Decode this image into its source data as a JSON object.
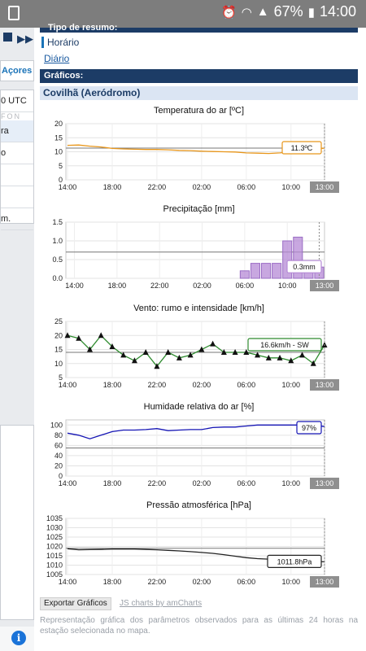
{
  "status_bar": {
    "battery": "67%",
    "time": "14:00"
  },
  "sidebar": {
    "acores_label": "Açores",
    "utc_label": "0 UTC",
    "faint_text": "FON",
    "rows": [
      "ra",
      "o",
      "",
      "",
      "m."
    ]
  },
  "main": {
    "resumo_title": "Tipo de resumo:",
    "link_horario": "Horário",
    "link_diario": "Diário",
    "graficos_header": "Gráficos:",
    "station": "Covilhã (Aeródromo)",
    "export_label": "Exportar Gráficos",
    "jscharts_label": "JS charts by amCharts",
    "footnote": "Representação gráfica dos parâmetros observados para as últimas 24 horas na estação selecionada no mapa."
  },
  "colors": {
    "navy": "#1c3c66",
    "temp": "#e8961a",
    "precip": "#b58ad6",
    "wind": "#2e8b2e",
    "humidity": "#1414b4",
    "pressure": "#222222"
  },
  "chart_data": [
    {
      "id": "temp",
      "type": "line",
      "title": "Temperatura do ar [ºC]",
      "x": [
        "14:00",
        "15:00",
        "16:00",
        "17:00",
        "18:00",
        "19:00",
        "20:00",
        "21:00",
        "22:00",
        "23:00",
        "00:00",
        "01:00",
        "02:00",
        "03:00",
        "04:00",
        "05:00",
        "06:00",
        "07:00",
        "08:00",
        "09:00",
        "10:00",
        "11:00",
        "12:00",
        "13:00"
      ],
      "values": [
        12.3,
        12.4,
        12.0,
        11.7,
        11.2,
        11.0,
        10.9,
        10.8,
        10.8,
        10.7,
        10.5,
        10.4,
        10.2,
        10.1,
        10.0,
        9.9,
        9.6,
        9.5,
        9.4,
        9.6,
        9.9,
        10.3,
        10.8,
        11.3
      ],
      "yticks": [
        0,
        5,
        10,
        15,
        20
      ],
      "ylim": [
        0,
        20
      ],
      "guide": 11.3,
      "balloon": "11.3ºC",
      "color": "#e8961a"
    },
    {
      "id": "precip",
      "type": "bar",
      "title": "Precipitação [mm]",
      "x": [
        "14:00",
        "15:00",
        "16:00",
        "17:00",
        "18:00",
        "19:00",
        "20:00",
        "21:00",
        "22:00",
        "23:00",
        "00:00",
        "01:00",
        "02:00",
        "03:00",
        "04:00",
        "05:00",
        "06:00",
        "07:00",
        "08:00",
        "09:00",
        "10:00",
        "11:00",
        "12:00",
        "13:00"
      ],
      "values": [
        0,
        0,
        0,
        0,
        0,
        0,
        0,
        0,
        0,
        0,
        0,
        0,
        0,
        0,
        0,
        0,
        0.2,
        0.4,
        0.4,
        0.4,
        1.0,
        1.1,
        0.4,
        0.3
      ],
      "yticks": [
        "0.0",
        "0.5",
        "1.0",
        "1.5"
      ],
      "ylim": [
        0,
        1.5
      ],
      "guide": 0.7,
      "balloon": "0.3mm",
      "color": "#b58ad6"
    },
    {
      "id": "wind",
      "type": "line",
      "title": "Vento: rumo e intensidade [km/h]",
      "x": [
        "14:00",
        "15:00",
        "16:00",
        "17:00",
        "18:00",
        "19:00",
        "20:00",
        "21:00",
        "22:00",
        "23:00",
        "00:00",
        "01:00",
        "02:00",
        "03:00",
        "04:00",
        "05:00",
        "06:00",
        "07:00",
        "08:00",
        "09:00",
        "10:00",
        "11:00",
        "12:00",
        "13:00"
      ],
      "values": [
        20,
        19,
        15,
        20,
        16,
        13,
        11,
        14,
        9,
        14,
        12,
        13,
        15,
        17,
        14,
        14,
        14,
        13,
        12,
        12,
        11,
        13,
        10,
        16.6
      ],
      "yticks": [
        5,
        10,
        15,
        20,
        25
      ],
      "ylim": [
        5,
        25
      ],
      "guide": 14,
      "balloon": "16.6km/h - SW",
      "color": "#2e8b2e"
    },
    {
      "id": "humidity",
      "type": "line",
      "title": "Humidade relativa do ar [%]",
      "x": [
        "14:00",
        "15:00",
        "16:00",
        "17:00",
        "18:00",
        "19:00",
        "20:00",
        "21:00",
        "22:00",
        "23:00",
        "00:00",
        "01:00",
        "02:00",
        "03:00",
        "04:00",
        "05:00",
        "06:00",
        "07:00",
        "08:00",
        "09:00",
        "10:00",
        "11:00",
        "12:00",
        "13:00"
      ],
      "values": [
        84,
        80,
        73,
        80,
        87,
        90,
        90,
        91,
        93,
        89,
        90,
        91,
        91,
        95,
        96,
        96,
        98,
        100,
        100,
        100,
        100,
        100,
        100,
        97
      ],
      "yticks": [
        0,
        20,
        40,
        60,
        80,
        100
      ],
      "ylim": [
        0,
        110
      ],
      "guide": 55,
      "balloon": "97%",
      "color": "#1414b4"
    },
    {
      "id": "pressure",
      "type": "line",
      "title": "Pressão atmosférica [hPa]",
      "x": [
        "14:00",
        "15:00",
        "16:00",
        "17:00",
        "18:00",
        "19:00",
        "20:00",
        "21:00",
        "22:00",
        "23:00",
        "00:00",
        "01:00",
        "02:00",
        "03:00",
        "04:00",
        "05:00",
        "06:00",
        "07:00",
        "08:00",
        "09:00",
        "10:00",
        "11:00",
        "12:00",
        "13:00"
      ],
      "values": [
        1018.8,
        1018.2,
        1018.3,
        1018.4,
        1018.6,
        1018.6,
        1018.6,
        1018.4,
        1018.2,
        1017.9,
        1017.6,
        1017.2,
        1016.8,
        1016.3,
        1015.6,
        1014.8,
        1014.0,
        1013.5,
        1013.2,
        1013.0,
        1012.6,
        1012.3,
        1012.0,
        1011.8
      ],
      "yticks": [
        1005,
        1010,
        1015,
        1020,
        1025,
        1030,
        1035
      ],
      "ylim": [
        1005,
        1035
      ],
      "guide": 1019,
      "balloon": "1011.8hPa",
      "color": "#222222"
    }
  ],
  "x_tick_labels": [
    "14:00",
    "18:00",
    "22:00",
    "02:00",
    "06:00",
    "10:00"
  ],
  "cursor_label": "13:00"
}
